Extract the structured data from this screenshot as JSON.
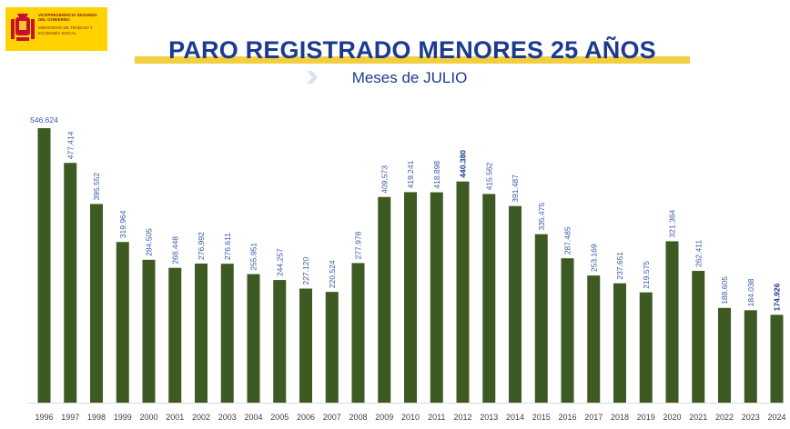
{
  "logo": {
    "line1": "VICEPRESIDENCIA SEGUNDA DEL GOBIERNO",
    "line2": "MINISTERIO DE TRABAJO Y ECONOMÍA SOCIAL"
  },
  "colors": {
    "bar": "#3d5a23",
    "label": "#3a55a8",
    "title": "#1c3b90",
    "banner": "#f2cf3e"
  },
  "chart_data": {
    "type": "bar",
    "title": "PARO REGISTRADO MENORES 25 AÑOS",
    "subtitle": "Meses de JULIO",
    "xlabel": "",
    "ylabel": "",
    "ylim": [
      0,
      546624
    ],
    "grid": false,
    "legend": "none",
    "highlighted": [
      "2012",
      "2024"
    ],
    "categories": [
      "1996",
      "1997",
      "1998",
      "1999",
      "2000",
      "2001",
      "2002",
      "2003",
      "2004",
      "2005",
      "2006",
      "2007",
      "2008",
      "2009",
      "2010",
      "2011",
      "2012",
      "2013",
      "2014",
      "2015",
      "2016",
      "2017",
      "2018",
      "2019",
      "2020",
      "2021",
      "2022",
      "2023",
      "2024"
    ],
    "values": [
      546624,
      477414,
      395552,
      319964,
      284505,
      268448,
      276992,
      276611,
      255951,
      244257,
      227120,
      220524,
      277978,
      409573,
      419241,
      418898,
      440380,
      415562,
      391487,
      335475,
      287485,
      253169,
      237651,
      219575,
      321364,
      262411,
      188605,
      184038,
      174926
    ],
    "labels": [
      "546.624",
      "477.414",
      "395.552",
      "319.964",
      "284.505",
      "268.448",
      "276.992",
      "276.611",
      "255.951",
      "244.257",
      "227.120",
      "220.524",
      "277.978",
      "409.573",
      "419.241",
      "418.898",
      "440.380",
      "415.562",
      "391.487",
      "335.475",
      "287.485",
      "253.169",
      "237.651",
      "219.575",
      "321.364",
      "262.411",
      "188.605",
      "184.038",
      "174.926"
    ]
  }
}
